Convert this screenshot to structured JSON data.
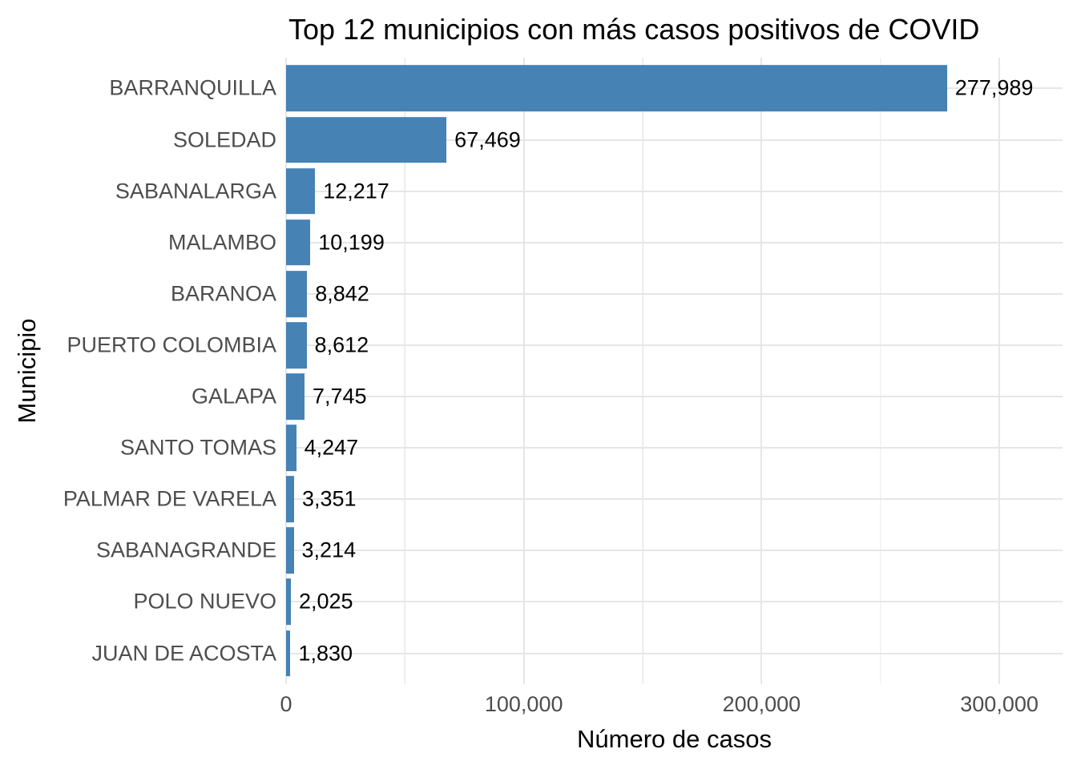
{
  "chart_data": {
    "type": "bar",
    "orientation": "horizontal",
    "title": "Top 12 municipios con más casos positivos de COVID",
    "xlabel": "Número de casos",
    "ylabel": "Municipio",
    "categories": [
      "BARRANQUILLA",
      "SOLEDAD",
      "SABANALARGA",
      "MALAMBO",
      "BARANOA",
      "PUERTO COLOMBIA",
      "GALAPA",
      "SANTO TOMAS",
      "PALMAR DE VARELA",
      "SABANAGRANDE",
      "POLO NUEVO",
      "JUAN DE ACOSTA"
    ],
    "values": [
      277989,
      67469,
      12217,
      10199,
      8842,
      8612,
      7745,
      4247,
      3351,
      3214,
      2025,
      1830
    ],
    "bar_labels": [
      "277,989",
      "67,469",
      "12,217",
      "10,199",
      "8,842",
      "8,612",
      "7,745",
      "4,247",
      "3,351",
      "3,214",
      "2,025",
      "1,830"
    ],
    "x_ticks": [
      0,
      100000,
      200000,
      300000
    ],
    "x_tick_labels": [
      "0",
      "100,000",
      "200,000",
      "300,000"
    ],
    "x_minor_ticks": [
      50000,
      150000,
      250000
    ],
    "xlim": [
      0,
      326600
    ],
    "grid": "major+minor",
    "legend": "none",
    "bar_relative_height": 0.9,
    "colors": {
      "bar": "#4682b4",
      "axis_text": "#4d4d4d",
      "title_text": "#000000",
      "grid_major": "#e6e6e6",
      "grid_minor": "#ececec",
      "background": "#ffffff"
    }
  }
}
